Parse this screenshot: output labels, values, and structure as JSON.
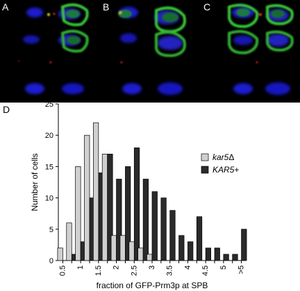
{
  "panels": [
    {
      "label": "A"
    },
    {
      "label": "B"
    },
    {
      "label": "C"
    },
    {
      "label": "D"
    }
  ],
  "chart_data": {
    "type": "bar",
    "xlabel": "fraction of GFP-Prm3p at SPB",
    "ylabel": "Number of cells",
    "ylim": [
      0,
      25
    ],
    "yticks": [
      0,
      5,
      10,
      15,
      20,
      25
    ],
    "grid": false,
    "legend_position": "right",
    "categories": [
      "0.5",
      "",
      "1",
      "",
      "1.5",
      "",
      "2",
      "",
      "2.5",
      "",
      "3",
      "",
      "3.5",
      "",
      "4",
      "",
      "4.5",
      "",
      "5",
      "",
      ">5"
    ],
    "series": [
      {
        "name": "kar5Δ",
        "name_parts": [
          "kar5",
          "Δ"
        ],
        "color": "#d0d0d0",
        "values": [
          2,
          6,
          15,
          20,
          22,
          17,
          4,
          4,
          3,
          2,
          1,
          0,
          0,
          0,
          0,
          0,
          0,
          0,
          0,
          0,
          0
        ]
      },
      {
        "name": "KAR5+",
        "name_parts": [
          "KAR5",
          "+"
        ],
        "color": "#2a2a2a",
        "values": [
          0,
          1,
          3,
          10,
          14,
          17,
          13,
          15,
          18,
          13,
          11,
          10,
          8,
          4,
          3,
          7,
          2,
          2,
          1,
          1,
          5
        ]
      }
    ]
  }
}
